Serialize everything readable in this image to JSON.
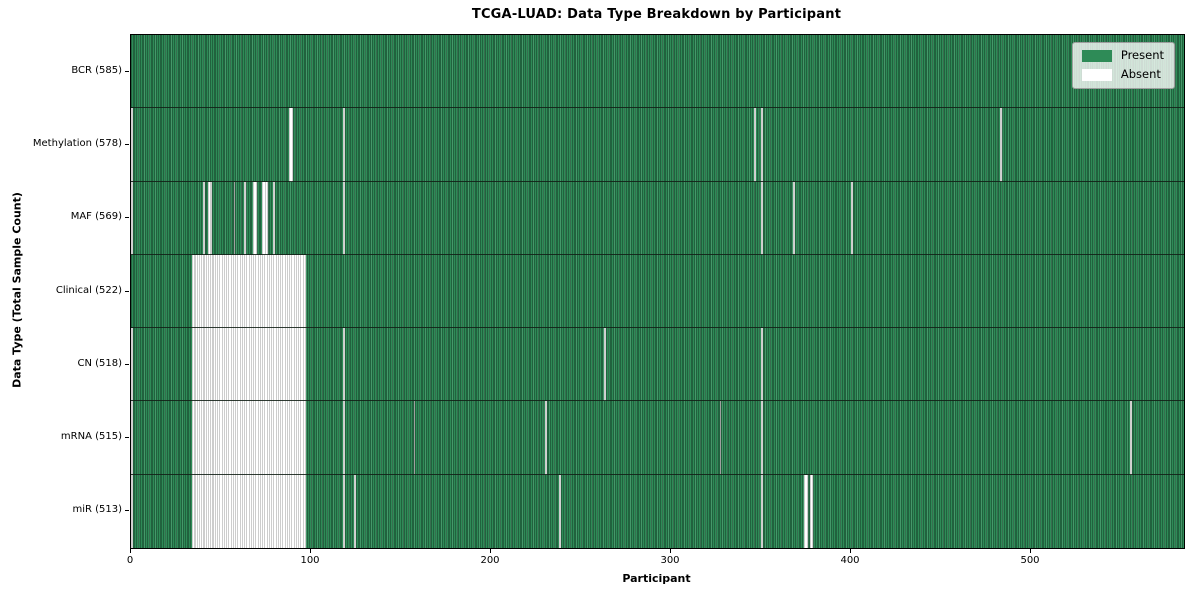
{
  "chart_data": {
    "type": "heatmap",
    "title": "TCGA-LUAD: Data Type Breakdown by Participant",
    "xlabel": "Participant",
    "ylabel": "Data Type (Total Sample Count)",
    "x_ticks": [
      0,
      100,
      200,
      300,
      400,
      500
    ],
    "x_range": [
      0,
      585
    ],
    "n_participants": 585,
    "grid": false,
    "legend_position": "upper right",
    "states": {
      "present": "Present",
      "absent": "Absent"
    },
    "rows": [
      {
        "name": "BCR",
        "label": "BCR (585)",
        "present_count": 585,
        "absent_runs": []
      },
      {
        "name": "Methylation",
        "label": "Methylation (578)",
        "present_count": 578,
        "absent_runs": [
          [
            0,
            0
          ],
          [
            88,
            89
          ],
          [
            118,
            118
          ],
          [
            346,
            346
          ],
          [
            350,
            350
          ],
          [
            483,
            483
          ]
        ]
      },
      {
        "name": "MAF",
        "label": "MAF (569)",
        "present_count": 569,
        "absent_runs": [
          [
            0,
            0
          ],
          [
            40,
            40
          ],
          [
            43,
            44
          ],
          [
            57,
            57
          ],
          [
            63,
            63
          ],
          [
            68,
            69
          ],
          [
            73,
            75
          ],
          [
            79,
            79
          ],
          [
            118,
            118
          ],
          [
            350,
            350
          ],
          [
            368,
            368
          ],
          [
            400,
            400
          ]
        ]
      },
      {
        "name": "Clinical",
        "label": "Clinical (522)",
        "present_count": 522,
        "absent_runs": [
          [
            34,
            96
          ]
        ]
      },
      {
        "name": "CN",
        "label": "CN (518)",
        "present_count": 518,
        "absent_runs": [
          [
            0,
            0
          ],
          [
            34,
            96
          ],
          [
            118,
            118
          ],
          [
            263,
            263
          ],
          [
            350,
            350
          ]
        ]
      },
      {
        "name": "mRNA",
        "label": "mRNA (515)",
        "present_count": 515,
        "absent_runs": [
          [
            0,
            0
          ],
          [
            34,
            96
          ],
          [
            118,
            118
          ],
          [
            157,
            157
          ],
          [
            230,
            230
          ],
          [
            327,
            327
          ],
          [
            350,
            350
          ],
          [
            555,
            555
          ]
        ]
      },
      {
        "name": "miR",
        "label": "miR (513)",
        "present_count": 513,
        "absent_runs": [
          [
            0,
            0
          ],
          [
            34,
            96
          ],
          [
            118,
            118
          ],
          [
            124,
            124
          ],
          [
            238,
            238
          ],
          [
            350,
            350
          ],
          [
            374,
            375
          ],
          [
            377,
            378
          ]
        ]
      }
    ]
  },
  "colors": {
    "present_fill": "#2e8b57",
    "present_edge": "#143824",
    "absent_fill": "#ffffff",
    "absent_edge": "#9b9b9b",
    "row_divider": "#122017",
    "axis": "#000000",
    "text": "#000000",
    "legend_border": "#9e9e9e",
    "background": "#ffffff"
  }
}
